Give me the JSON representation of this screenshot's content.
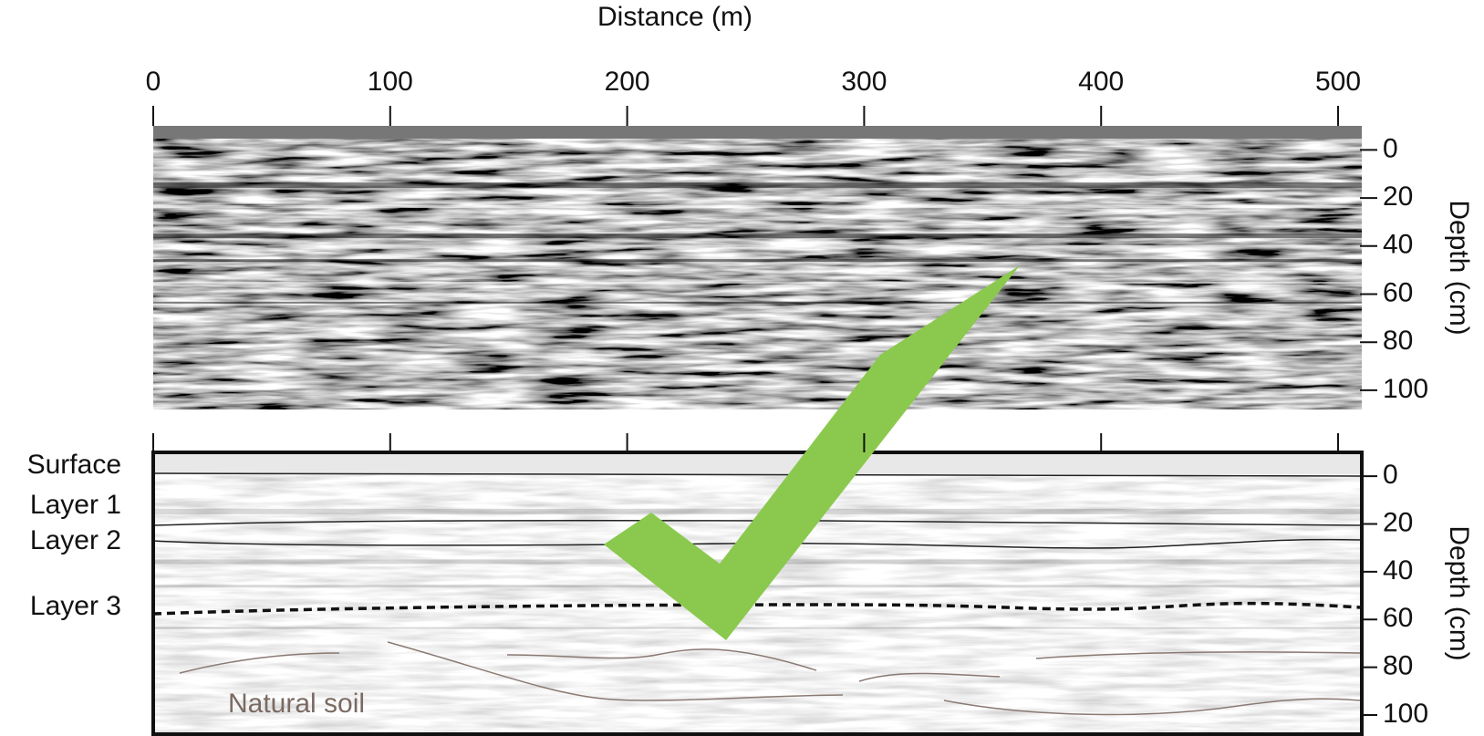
{
  "chart_data": [
    {
      "type": "radargram",
      "xlabel": "Distance (m)",
      "xlim": [
        0,
        510
      ],
      "xticks": [
        0,
        100,
        200,
        300,
        400,
        500
      ],
      "ylabel": "Depth (cm)",
      "ylim": [
        -10,
        108
      ],
      "yticks": [
        0,
        20,
        40,
        60,
        80,
        100
      ]
    },
    {
      "type": "radargram",
      "xlim": [
        0,
        510
      ],
      "xticks": [
        0,
        100,
        200,
        300,
        400,
        500
      ],
      "ylabel": "Depth (cm)",
      "ylim": [
        -10,
        108
      ],
      "yticks": [
        0,
        20,
        40,
        60,
        80,
        100
      ],
      "layers": [
        "Surface",
        "Layer 1",
        "Layer 2",
        "Layer 3"
      ],
      "annotation": "Natural soil"
    }
  ]
}
